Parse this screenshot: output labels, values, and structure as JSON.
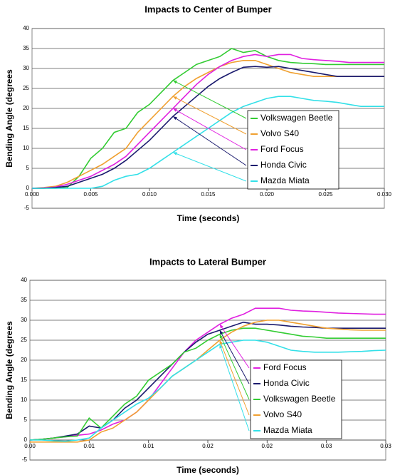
{
  "chart_data": [
    {
      "type": "line",
      "title": "Impacts to Center of Bumper",
      "x_label": "Time (seconds)",
      "y_label": "Bending Angle (degrees",
      "x": [
        0,
        0.001,
        0.002,
        0.003,
        0.004,
        0.005,
        0.006,
        0.007,
        0.008,
        0.009,
        0.01,
        0.011,
        0.012,
        0.013,
        0.014,
        0.015,
        0.016,
        0.017,
        0.018,
        0.019,
        0.02,
        0.021,
        0.022,
        0.023,
        0.024,
        0.025,
        0.026,
        0.027,
        0.028,
        0.029,
        0.03
      ],
      "series": [
        {
          "name": "Volkswagen Beetle",
          "color": "#33cc33",
          "values": [
            0,
            0,
            0,
            0.2,
            3,
            7.5,
            10,
            14,
            15,
            19,
            21,
            24,
            27,
            29,
            31,
            32,
            33,
            35,
            34,
            34.5,
            33,
            32,
            31.5,
            31.3,
            31.2,
            31,
            31,
            31,
            31,
            31,
            31
          ]
        },
        {
          "name": "Volvo S40",
          "color": "#f0a030",
          "values": [
            0,
            0.2,
            0.5,
            1.5,
            3,
            4.5,
            6,
            8,
            10,
            14,
            17,
            20,
            23,
            25.5,
            27.5,
            29,
            30.5,
            31.5,
            32,
            32,
            31,
            30,
            29,
            28.5,
            28,
            28,
            28,
            28,
            28,
            28,
            28
          ]
        },
        {
          "name": "Ford Focus",
          "color": "#e020e0",
          "values": [
            0,
            0.1,
            0.3,
            1,
            2,
            3,
            4.5,
            6,
            8,
            11,
            14,
            17,
            20,
            23,
            26,
            28.5,
            30.5,
            32,
            33,
            33.5,
            33,
            33.5,
            33.5,
            32.5,
            32.2,
            32,
            31.8,
            31.5,
            31.5,
            31.5,
            31.5
          ]
        },
        {
          "name": "Honda Civic",
          "color": "#1a1a6e",
          "values": [
            0,
            0,
            0.2,
            0.5,
            1.5,
            2.5,
            3.5,
            5,
            7,
            9.5,
            12,
            15,
            18,
            20.5,
            23,
            25.5,
            27.5,
            29,
            30.3,
            30.5,
            30.3,
            30.5,
            30,
            29.5,
            29,
            28.5,
            28,
            28,
            28,
            28,
            28
          ]
        },
        {
          "name": "Mazda Miata",
          "color": "#33e0e8",
          "values": [
            0,
            0,
            0,
            0,
            0,
            0,
            0.5,
            2,
            3,
            3.5,
            5,
            7,
            9,
            11,
            13,
            15,
            17,
            19,
            20.5,
            21.5,
            22.5,
            23,
            23,
            22.5,
            22,
            21.8,
            21.5,
            21,
            20.5,
            20.5,
            20.5
          ]
        }
      ],
      "xlim": [
        0,
        0.03
      ],
      "ylim": [
        -5,
        40
      ],
      "xticks": [
        {
          "value": 0,
          "label": "0.000"
        },
        {
          "value": 0.005,
          "label": "0.005"
        },
        {
          "value": 0.01,
          "label": "0.010"
        },
        {
          "value": 0.015,
          "label": "0.015"
        },
        {
          "value": 0.02,
          "label": "0.020"
        },
        {
          "value": 0.025,
          "label": "0.025"
        },
        {
          "value": 0.03,
          "label": "0.030"
        }
      ],
      "yticks": [
        -5,
        0,
        5,
        10,
        15,
        20,
        25,
        30,
        35,
        40
      ],
      "grid": true,
      "legend": "lower right"
    },
    {
      "type": "line",
      "title": "Impacts to Lateral Bumper",
      "x_label": "Time (seconds)",
      "y_label": "Bending Angle (degrees",
      "x": [
        0,
        0.001,
        0.002,
        0.003,
        0.004,
        0.005,
        0.006,
        0.007,
        0.008,
        0.009,
        0.01,
        0.011,
        0.012,
        0.013,
        0.014,
        0.015,
        0.016,
        0.017,
        0.018,
        0.019,
        0.02,
        0.021,
        0.022,
        0.023,
        0.024,
        0.025,
        0.026,
        0.027,
        0.028,
        0.029,
        0.03
      ],
      "series": [
        {
          "name": "Ford Focus",
          "color": "#e020e0",
          "values": [
            0,
            0.2,
            0.5,
            0.8,
            1.2,
            1.5,
            2.5,
            4,
            5,
            7,
            10,
            14,
            18,
            22,
            25,
            27,
            29,
            30.5,
            31.5,
            33,
            33,
            33,
            32.5,
            32.3,
            32.2,
            32,
            31.8,
            31.7,
            31.6,
            31.5,
            31.5
          ]
        },
        {
          "name": "Honda Civic",
          "color": "#1a1a6e",
          "values": [
            0,
            0.2,
            0.5,
            1,
            1.5,
            3.5,
            3,
            5,
            8,
            10,
            13,
            16,
            19,
            22,
            24.5,
            26.5,
            27.5,
            28.5,
            29.5,
            29,
            29,
            28.8,
            28.5,
            28.3,
            28.2,
            28,
            28,
            28,
            28,
            28,
            28
          ]
        },
        {
          "name": "Volkswagen Beetle",
          "color": "#33cc33",
          "values": [
            0,
            0.2,
            0.5,
            0.8,
            1,
            5.5,
            3,
            6,
            9,
            11,
            15,
            17,
            19,
            22,
            23,
            25,
            26.5,
            27.5,
            28,
            28,
            27.5,
            27,
            26.5,
            26,
            25.8,
            25.5,
            25.5,
            25.5,
            25.5,
            25.5,
            25.5
          ]
        },
        {
          "name": "Volvo S40",
          "color": "#f0a030",
          "values": [
            -0.5,
            -0.5,
            -0.5,
            -0.5,
            -0.5,
            0,
            2,
            3,
            5,
            7,
            10,
            13,
            16,
            18,
            20,
            22.5,
            25,
            27,
            28.5,
            29.5,
            30,
            30,
            29.5,
            29,
            28.5,
            28,
            27.8,
            27.6,
            27.5,
            27.5,
            27.5
          ]
        },
        {
          "name": "Mazda Miata",
          "color": "#33e0e8",
          "values": [
            0,
            0,
            -0.2,
            -0.3,
            0,
            0.5,
            3,
            5,
            7,
            9,
            10.5,
            13,
            16,
            18,
            20,
            22,
            24,
            24.5,
            25,
            25,
            24.5,
            23.5,
            22.5,
            22.2,
            22,
            22,
            22,
            22.1,
            22.2,
            22.4,
            22.5
          ]
        }
      ],
      "xlim": [
        0,
        0.03
      ],
      "ylim": [
        -5,
        40
      ],
      "xticks": [
        {
          "value": 0,
          "label": "0.00"
        },
        {
          "value": 0.005,
          "label": "0.01"
        },
        {
          "value": 0.01,
          "label": "0.01"
        },
        {
          "value": 0.015,
          "label": "0.02"
        },
        {
          "value": 0.02,
          "label": "0.02"
        },
        {
          "value": 0.025,
          "label": "0.03"
        },
        {
          "value": 0.03,
          "label": "0.03"
        }
      ],
      "yticks": [
        -5,
        0,
        5,
        10,
        15,
        20,
        25,
        30,
        35,
        40
      ],
      "grid": true,
      "legend": "lower right"
    }
  ]
}
